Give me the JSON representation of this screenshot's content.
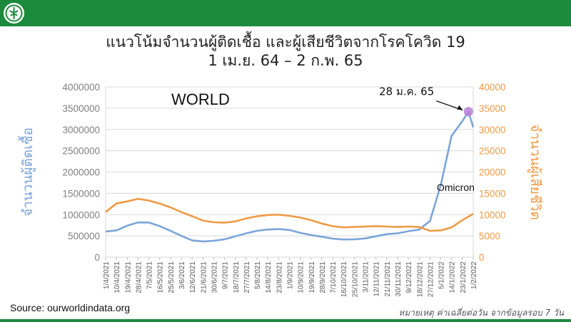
{
  "header": {
    "title_line1": "แนวโน้มจำนวนผู้ติดเชื้อ และผู้เสียชีวิตจากโรคโควิด 19",
    "title_line2": "1 เม.ย. 64 – 2 ก.พ. 65",
    "bar_color": "#1b8a3c"
  },
  "footer": {
    "source": "Source: ourworldindata.org",
    "note": "หมายเหตุ ค่าเฉลี่ยต่อวัน จากข้อมูลรอบ 7 วัน"
  },
  "chart_data": {
    "type": "line",
    "region_label": "WORLD",
    "y_left": {
      "label": "จำนวนผู้ติดเชื้อ",
      "min": 0,
      "max": 4000000,
      "ticks": [
        "0",
        "500000",
        "1000000",
        "1500000",
        "2000000",
        "2500000",
        "3000000",
        "3500000",
        "4000000"
      ],
      "color": "#7ba5d8"
    },
    "y_right": {
      "label": "จำนวนผู้เสียชีวิต",
      "min": 0,
      "max": 40000,
      "ticks": [
        "0",
        "5000",
        "10000",
        "15000",
        "20000",
        "25000",
        "30000",
        "35000",
        "40000"
      ],
      "color": "#ee9a45"
    },
    "x_ticks": [
      "1/4/2021",
      "10/4/2021",
      "19/4/2021",
      "28/4/2021",
      "7/5/2021",
      "16/5/2021",
      "25/5/2021",
      "3/6/2021",
      "12/6/2021",
      "21/6/2021",
      "30/6/2021",
      "9/7/2021",
      "18/7/2021",
      "27/7/2021",
      "5/8/2021",
      "14/8/2021",
      "23/8/2021",
      "1/9/2021",
      "10/9/2021",
      "19/9/2021",
      "28/9/2021",
      "7/10/2021",
      "16/10/2021",
      "25/10/2021",
      "3/11/2021",
      "12/11/2021",
      "21/11/2021",
      "30/11/2021",
      "9/12/2021",
      "18/12/2021",
      "27/12/2021",
      "5/1/2022",
      "14/1/2022",
      "23/1/2022",
      "1/2/2022"
    ],
    "series": [
      {
        "name": "จำนวนผู้ติดเชื้อ",
        "axis": "left",
        "color": "#7ba5d8",
        "points": [
          [
            "1/4/2021",
            600000
          ],
          [
            "10/4/2021",
            630000
          ],
          [
            "19/4/2021",
            740000
          ],
          [
            "28/4/2021",
            815000
          ],
          [
            "7/5/2021",
            815000
          ],
          [
            "16/5/2021",
            730000
          ],
          [
            "25/5/2021",
            620000
          ],
          [
            "3/6/2021",
            500000
          ],
          [
            "12/6/2021",
            395000
          ],
          [
            "21/6/2021",
            370000
          ],
          [
            "30/6/2021",
            385000
          ],
          [
            "9/7/2021",
            420000
          ],
          [
            "18/7/2021",
            490000
          ],
          [
            "27/7/2021",
            560000
          ],
          [
            "5/8/2021",
            620000
          ],
          [
            "14/8/2021",
            650000
          ],
          [
            "23/8/2021",
            660000
          ],
          [
            "1/9/2021",
            640000
          ],
          [
            "10/9/2021",
            570000
          ],
          [
            "19/9/2021",
            520000
          ],
          [
            "28/9/2021",
            480000
          ],
          [
            "7/10/2021",
            435000
          ],
          [
            "16/10/2021",
            415000
          ],
          [
            "25/10/2021",
            420000
          ],
          [
            "3/11/2021",
            440000
          ],
          [
            "12/11/2021",
            490000
          ],
          [
            "21/11/2021",
            540000
          ],
          [
            "30/11/2021",
            560000
          ],
          [
            "9/12/2021",
            610000
          ],
          [
            "18/12/2021",
            650000
          ],
          [
            "27/12/2021",
            850000
          ],
          [
            "5/1/2022",
            1700000
          ],
          [
            "14/1/2022",
            2850000
          ],
          [
            "23/1/2022",
            3200000
          ],
          [
            "28/1/2022",
            3420000
          ],
          [
            "1/2/2022",
            3050000
          ]
        ]
      },
      {
        "name": "จำนวนผู้เสียชีวิต",
        "axis": "right",
        "color": "#ee9a45",
        "points": [
          [
            "1/4/2021",
            10600
          ],
          [
            "10/4/2021",
            12600
          ],
          [
            "19/4/2021",
            13100
          ],
          [
            "28/4/2021",
            13700
          ],
          [
            "7/5/2021",
            13300
          ],
          [
            "16/5/2021",
            12600
          ],
          [
            "25/5/2021",
            11700
          ],
          [
            "3/6/2021",
            10600
          ],
          [
            "12/6/2021",
            9600
          ],
          [
            "21/6/2021",
            8600
          ],
          [
            "30/6/2021",
            8200
          ],
          [
            "9/7/2021",
            8100
          ],
          [
            "18/7/2021",
            8400
          ],
          [
            "27/7/2021",
            9100
          ],
          [
            "5/8/2021",
            9600
          ],
          [
            "14/8/2021",
            9900
          ],
          [
            "23/8/2021",
            10000
          ],
          [
            "1/9/2021",
            9700
          ],
          [
            "10/9/2021",
            9300
          ],
          [
            "19/9/2021",
            8700
          ],
          [
            "28/9/2021",
            7900
          ],
          [
            "7/10/2021",
            7300
          ],
          [
            "16/10/2021",
            7000
          ],
          [
            "25/10/2021",
            7100
          ],
          [
            "3/11/2021",
            7200
          ],
          [
            "12/11/2021",
            7300
          ],
          [
            "21/11/2021",
            7200
          ],
          [
            "30/11/2021",
            7100
          ],
          [
            "9/12/2021",
            7200
          ],
          [
            "18/12/2021",
            7100
          ],
          [
            "27/12/2021",
            6200
          ],
          [
            "5/1/2022",
            6300
          ],
          [
            "14/1/2022",
            7000
          ],
          [
            "23/1/2022",
            8700
          ],
          [
            "1/2/2022",
            10200
          ]
        ]
      }
    ],
    "annotations": [
      {
        "text": "28 ม.ค. 65",
        "at_date": "28/1/2022",
        "at_value": 3420000,
        "marker_color": "#b77fd8"
      },
      {
        "text": "Omicron"
      }
    ]
  }
}
